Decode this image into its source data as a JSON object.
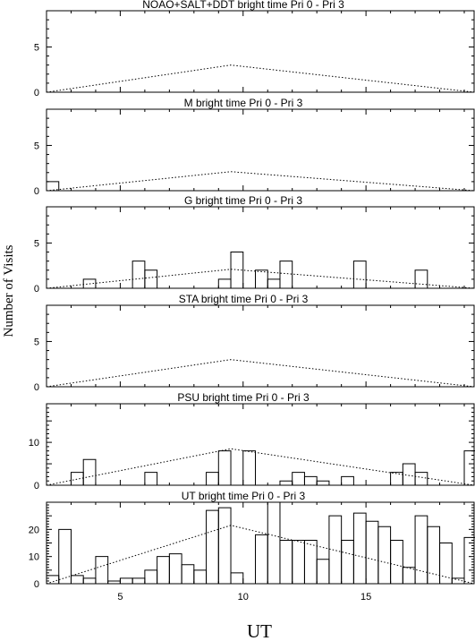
{
  "chart_data": [
    {
      "type": "histogram",
      "title": "NOAO+SALT+DDT    bright time Pri 0 - Pri 3",
      "xlim": [
        2,
        19.4
      ],
      "ylim": [
        0,
        9
      ],
      "yticks": [
        0,
        5
      ],
      "bin_width": 0.5,
      "bins_start": 2,
      "counts": [
        0,
        0,
        0,
        0,
        0,
        0,
        0,
        0,
        0,
        0,
        0,
        0,
        0,
        0,
        0,
        0,
        0,
        0,
        0,
        0,
        0,
        0,
        0,
        0,
        0,
        0,
        0,
        0,
        0,
        0,
        0,
        0,
        0,
        0,
        0
      ],
      "model": {
        "x": [
          2,
          9.5,
          19.4
        ],
        "y": [
          0,
          3.0,
          0
        ]
      }
    },
    {
      "type": "histogram",
      "title": "M    bright time Pri 0 - Pri 3",
      "xlim": [
        2,
        19.4
      ],
      "ylim": [
        0,
        9
      ],
      "yticks": [
        0,
        5
      ],
      "bin_width": 0.5,
      "bins_start": 2,
      "counts": [
        1,
        0,
        0,
        0,
        0,
        0,
        0,
        0,
        0,
        0,
        0,
        0,
        0,
        0,
        0,
        0,
        0,
        0,
        0,
        0,
        0,
        0,
        0,
        0,
        0,
        0,
        0,
        0,
        0,
        0,
        0,
        0,
        0,
        0,
        0
      ],
      "model": {
        "x": [
          2,
          9.5,
          19.4
        ],
        "y": [
          0,
          2.1,
          0
        ]
      }
    },
    {
      "type": "histogram",
      "title": "G    bright time Pri 0 - Pri 3",
      "xlim": [
        2,
        19.4
      ],
      "ylim": [
        0,
        9
      ],
      "yticks": [
        0,
        5
      ],
      "bin_width": 0.5,
      "bins_start": 2,
      "counts": [
        0,
        0,
        0,
        1,
        0,
        0,
        0,
        3,
        2,
        0,
        0,
        0,
        0,
        0,
        1,
        4,
        0,
        2,
        1,
        3,
        0,
        0,
        0,
        0,
        0,
        3,
        0,
        0,
        0,
        0,
        2,
        0,
        0,
        0,
        0
      ],
      "model": {
        "x": [
          2,
          9.5,
          19.4
        ],
        "y": [
          0,
          2.1,
          0
        ]
      }
    },
    {
      "type": "histogram",
      "title": "STA    bright time Pri 0 - Pri 3",
      "xlim": [
        2,
        19.4
      ],
      "ylim": [
        0,
        9
      ],
      "yticks": [
        0,
        5
      ],
      "bin_width": 0.5,
      "bins_start": 2,
      "counts": [
        0,
        0,
        0,
        0,
        0,
        0,
        0,
        0,
        0,
        0,
        0,
        0,
        0,
        0,
        0,
        0,
        0,
        0,
        0,
        0,
        0,
        0,
        0,
        0,
        0,
        0,
        0,
        0,
        0,
        0,
        0,
        0,
        0,
        0,
        0
      ],
      "model": {
        "x": [
          2,
          9.5,
          19.4
        ],
        "y": [
          0,
          3.0,
          0
        ]
      }
    },
    {
      "type": "histogram",
      "title": "PSU    bright time Pri 0 - Pri 3",
      "xlim": [
        2,
        19.4
      ],
      "ylim": [
        0,
        19
      ],
      "yticks": [
        0,
        10
      ],
      "bin_width": 0.5,
      "bins_start": 2,
      "counts": [
        0,
        0,
        3,
        6,
        0,
        0,
        0,
        0,
        3,
        0,
        0,
        0,
        0,
        3,
        8,
        0,
        8,
        0,
        0,
        1,
        3,
        2,
        1,
        0,
        2,
        0,
        0,
        0,
        3,
        5,
        3,
        0,
        0,
        0,
        8
      ],
      "model": {
        "x": [
          2,
          9.5,
          19.4
        ],
        "y": [
          0,
          8.5,
          0
        ]
      }
    },
    {
      "type": "histogram",
      "title": "UT    bright time Pri 0 - Pri 3",
      "xlim": [
        2,
        19.4
      ],
      "ylim": [
        0,
        30
      ],
      "yticks": [
        0,
        10,
        20
      ],
      "bin_width": 0.5,
      "bins_start": 2,
      "counts": [
        3,
        20,
        3,
        2,
        10,
        1,
        2,
        2,
        5,
        10,
        11,
        7,
        5,
        27,
        28,
        4,
        0,
        18,
        30,
        16,
        16,
        16,
        9,
        25,
        16,
        26,
        23,
        21,
        16,
        6,
        25,
        21,
        15,
        2,
        17
      ],
      "model": {
        "x": [
          2,
          9.5,
          19.4
        ],
        "y": [
          0,
          21.5,
          0
        ]
      }
    }
  ],
  "axes": {
    "xticks": [
      5,
      10,
      15
    ],
    "xlabel": "UT",
    "ylabel": "Number of Visits"
  }
}
